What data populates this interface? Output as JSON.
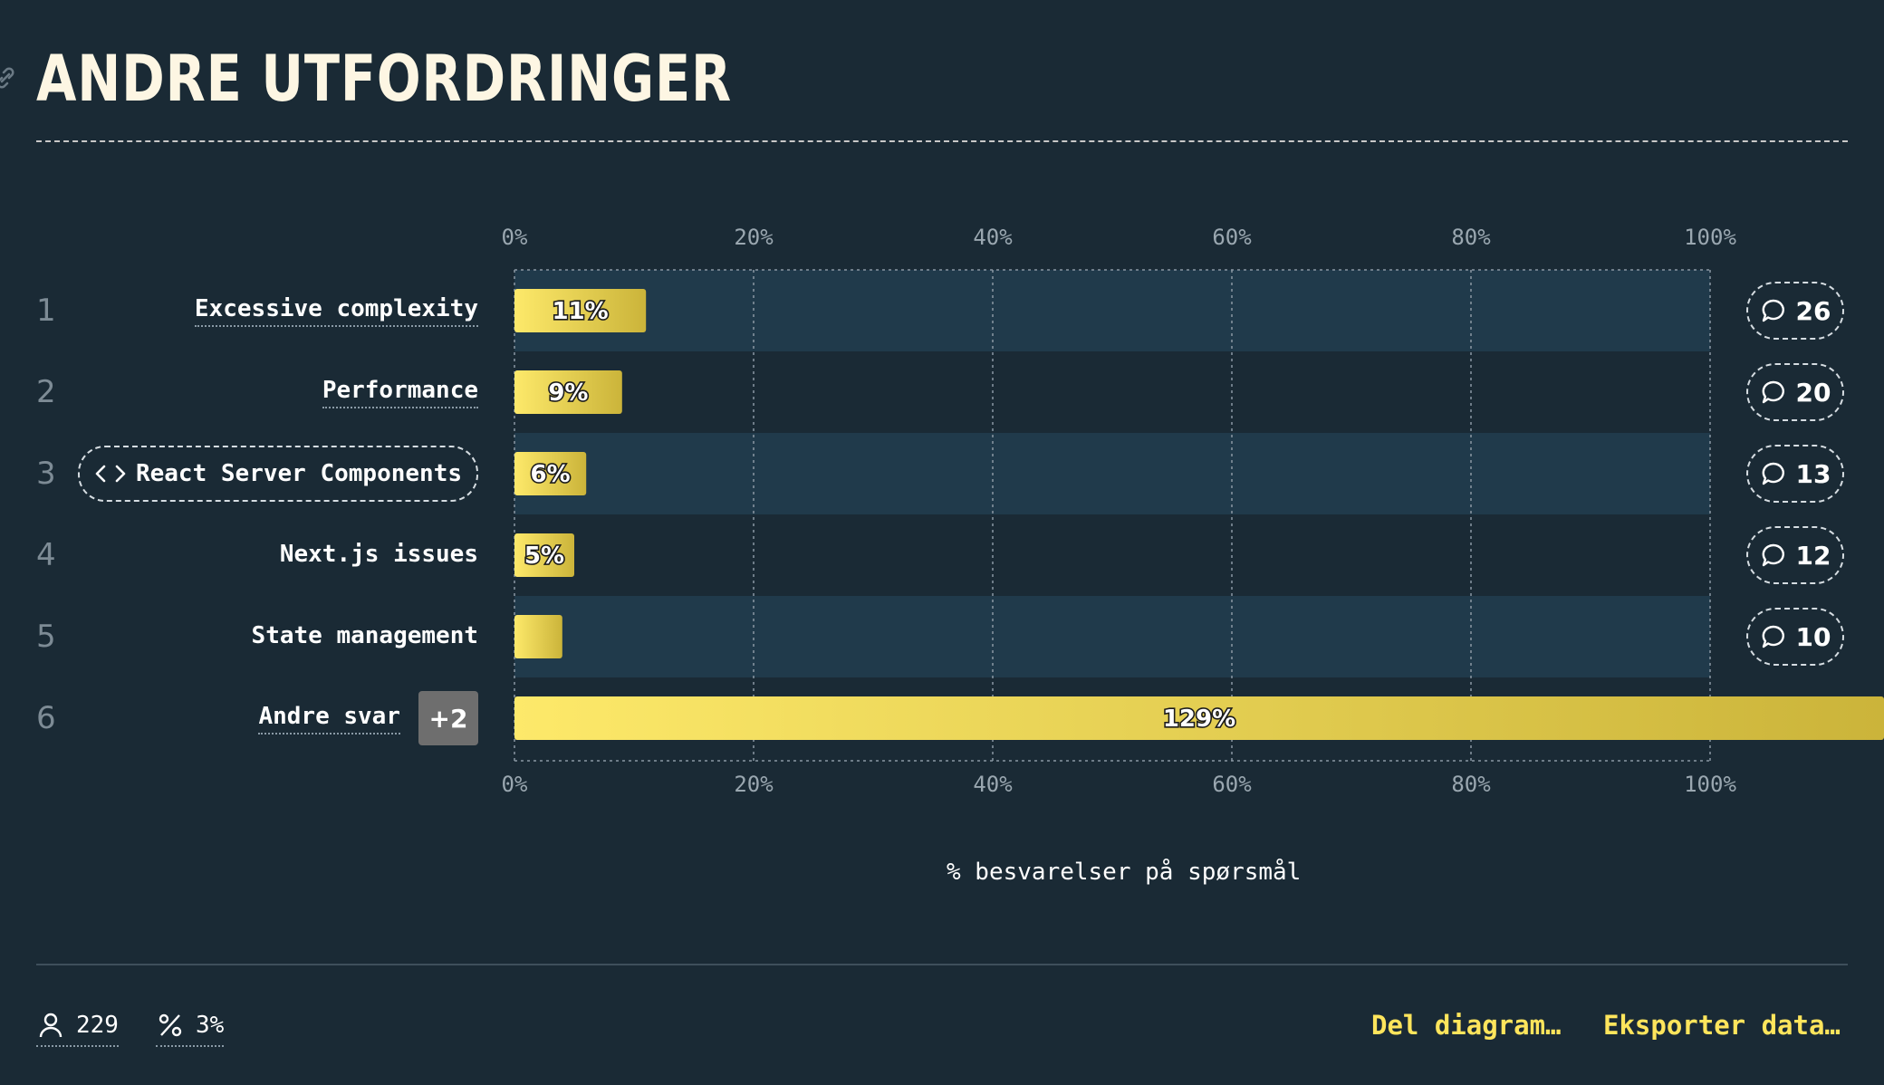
{
  "page_title": "ANDRE UTFORDRINGER",
  "colors": {
    "background": "#1a2a35",
    "row_band": "#203a4b",
    "bar_start": "#fde96a",
    "bar_end": "#cbb43a",
    "accent_text": "#ffe55c"
  },
  "icons": {
    "link": "link-icon",
    "code": "code-icon",
    "comment": "comment-icon",
    "user": "user-icon",
    "percent": "percent-icon"
  },
  "rows": [
    {
      "rank": "1",
      "label": "Excessive complexity",
      "comments": "26",
      "style": "underline"
    },
    {
      "rank": "2",
      "label": "Performance",
      "comments": "20",
      "style": "underline"
    },
    {
      "rank": "3",
      "label": "React Server Components",
      "comments": "13",
      "style": "pill"
    },
    {
      "rank": "4",
      "label": "Next.js issues",
      "comments": "12",
      "style": "plain"
    },
    {
      "rank": "5",
      "label": "State management",
      "comments": "10",
      "style": "plain"
    },
    {
      "rank": "6",
      "label": "Andre svar",
      "more_badge": "+2",
      "style": "underline"
    }
  ],
  "chart_data": {
    "type": "bar",
    "orientation": "horizontal",
    "categories": [
      "Excessive complexity",
      "Performance",
      "React Server Components",
      "Next.js issues",
      "State management",
      "Andre svar"
    ],
    "values": [
      11,
      9,
      6,
      5,
      4,
      129
    ],
    "value_labels": [
      "11%",
      "9%",
      "6%",
      "5%",
      "",
      "129%"
    ],
    "xlim": [
      0,
      100
    ],
    "x_ticks": [
      "0%",
      "20%",
      "40%",
      "60%",
      "80%",
      "100%"
    ],
    "xlabel": "% besvarelser på spørsmål",
    "grid": true
  },
  "footer": {
    "respondents": "229",
    "percent": "3%",
    "share_label": "Del diagram…",
    "export_label": "Eksporter data…"
  }
}
